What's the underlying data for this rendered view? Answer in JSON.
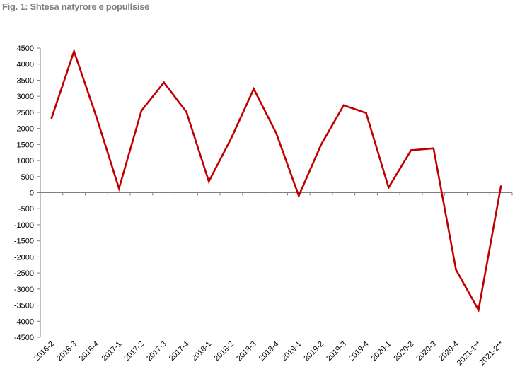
{
  "chart_data": {
    "type": "line",
    "title": "Fig. 1: Shtesa natyrore e popullsisë",
    "xlabel": "",
    "ylabel": "",
    "ylim": [
      -4500,
      4500
    ],
    "yticks": [
      4500,
      4000,
      3500,
      3000,
      2500,
      2000,
      1500,
      1000,
      500,
      0,
      -500,
      -1000,
      -1500,
      -2000,
      -2500,
      -3000,
      -3500,
      -4000,
      -4500
    ],
    "grid": false,
    "legend": "none",
    "categories": [
      "2016-2",
      "2016-3",
      "2016-4",
      "2017-1",
      "2017-2",
      "2017-3",
      "2017-4",
      "2018-1",
      "2018-2",
      "2018-3",
      "2018-4",
      "2019-1",
      "2019-2",
      "2019-3",
      "2019-4",
      "2020-1",
      "2020-2",
      "2020-3",
      "2020-4",
      "2021-1**",
      "2021-2**"
    ],
    "series": [
      {
        "color": "#c00000",
        "values": [
          2320,
          4400,
          2350,
          130,
          2550,
          3430,
          2510,
          350,
          1700,
          3230,
          1850,
          -100,
          1500,
          2720,
          2480,
          160,
          1320,
          1380,
          -2400,
          -3650,
          200
        ]
      }
    ]
  }
}
